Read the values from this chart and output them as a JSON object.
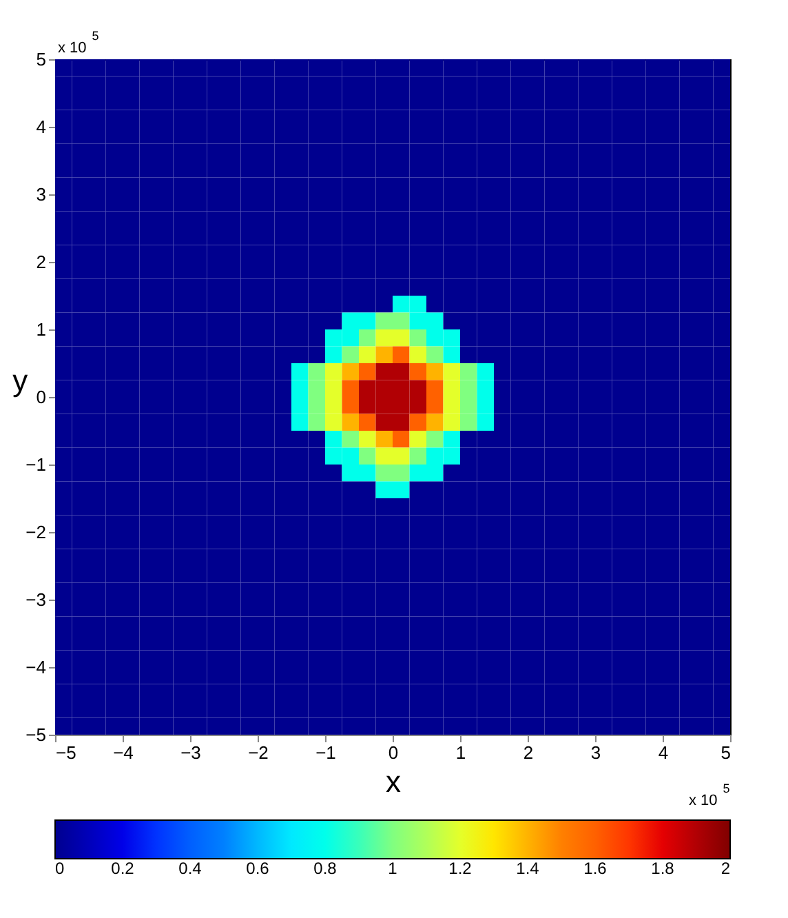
{
  "chart_data": {
    "type": "heatmap",
    "xlabel": "x",
    "ylabel": "y",
    "annotations": [
      "x 10$^{5}$",
      "x 10$^{5}$"
    ],
    "xlim": [
      -5,
      5
    ],
    "ylim": [
      -5,
      5
    ],
    "xticks": [
      -5,
      -4,
      -3,
      -2,
      -1,
      0,
      1,
      2,
      3,
      4,
      5
    ],
    "yticks": [
      -5,
      -4,
      -3,
      -2,
      -1,
      0,
      1,
      2,
      3,
      4,
      5
    ],
    "clim": [
      0,
      2
    ],
    "cticks": [
      0,
      0.2,
      0.4,
      0.6,
      0.8,
      1,
      1.2,
      1.4,
      1.6,
      1.8,
      2
    ],
    "grid": false,
    "x": [
      -4.875,
      -4.625,
      -4.375,
      -4.125,
      -3.875,
      -3.625,
      -3.375,
      -3.125,
      -2.875,
      -2.625,
      -2.375,
      -2.125,
      -1.875,
      -1.625,
      -1.375,
      -1.125,
      -0.875,
      -0.625,
      -0.375,
      -0.125,
      0.125,
      0.375,
      0.625,
      0.875,
      1.125,
      1.375,
      1.625,
      1.875,
      2.125,
      2.375,
      2.625,
      2.875,
      3.125,
      3.375,
      3.625,
      3.875,
      4.125,
      4.375,
      4.625,
      4.875
    ],
    "y": [
      4.875,
      4.625,
      4.375,
      4.125,
      3.875,
      3.625,
      3.375,
      3.125,
      2.875,
      2.625,
      2.375,
      2.125,
      1.875,
      1.625,
      1.375,
      1.125,
      0.875,
      0.625,
      0.375,
      0.125,
      -0.125,
      -0.375,
      -0.625,
      -0.875,
      -1.125,
      -1.375,
      -1.625,
      -1.875,
      -2.125,
      -2.375,
      -2.625,
      -2.875,
      -3.125,
      -3.375,
      -3.625,
      -3.875,
      -4.125,
      -4.375,
      -4.625,
      -4.875
    ],
    "cells": [
      [
        0,
        0,
        0,
        0,
        0,
        0,
        0,
        0,
        0,
        0,
        0,
        0,
        0,
        0,
        0,
        0,
        0,
        0,
        0,
        0,
        0,
        0,
        0,
        0,
        0,
        0,
        0,
        0,
        0,
        0,
        0,
        0,
        0,
        0,
        0,
        0,
        0,
        0,
        0,
        0
      ],
      [
        0,
        0,
        0,
        0,
        0,
        0,
        0,
        0,
        0,
        0,
        0,
        0,
        0,
        0,
        0,
        0,
        0,
        0,
        0,
        0,
        0,
        0,
        0,
        0,
        0,
        0,
        0,
        0,
        0,
        0,
        0,
        0,
        0,
        0,
        0,
        0,
        0,
        0,
        0,
        0
      ],
      [
        0,
        0,
        0,
        0,
        0,
        0,
        0,
        0,
        0,
        0,
        0,
        0,
        0,
        0,
        0,
        0,
        0,
        0,
        0,
        0,
        0,
        0,
        0,
        0,
        0,
        0,
        0,
        0,
        0,
        0,
        0,
        0,
        0,
        0,
        0,
        0,
        0,
        0,
        0,
        0
      ],
      [
        0,
        0,
        0,
        0,
        0,
        0,
        0,
        0,
        0,
        0,
        0,
        0,
        0,
        0,
        0,
        0,
        0,
        0,
        0,
        0,
        0,
        0,
        0,
        0,
        0,
        0,
        0,
        0,
        0,
        0,
        0,
        0,
        0,
        0,
        0,
        0,
        0,
        0,
        0,
        0
      ],
      [
        0,
        0,
        0,
        0,
        0,
        0,
        0,
        0,
        0,
        0,
        0,
        0,
        0,
        0,
        0,
        0,
        0,
        0,
        0,
        0,
        0,
        0,
        0,
        0,
        0,
        0,
        0,
        0,
        0,
        0,
        0,
        0,
        0,
        0,
        0,
        0,
        0,
        0,
        0,
        0
      ],
      [
        0,
        0,
        0,
        0,
        0,
        0,
        0,
        0,
        0,
        0,
        0,
        0,
        0,
        0,
        0,
        0,
        0,
        0,
        0,
        0,
        0,
        0,
        0,
        0,
        0,
        0,
        0,
        0,
        0,
        0,
        0,
        0,
        0,
        0,
        0,
        0,
        0,
        0,
        0,
        0
      ],
      [
        0,
        0,
        0,
        0,
        0,
        0,
        0,
        0,
        0,
        0,
        0,
        0,
        0,
        0,
        0,
        0,
        0,
        0,
        0,
        0,
        0,
        0,
        0,
        0,
        0,
        0,
        0,
        0,
        0,
        0,
        0,
        0,
        0,
        0,
        0,
        0,
        0,
        0,
        0,
        0
      ],
      [
        0,
        0,
        0,
        0,
        0,
        0,
        0,
        0,
        0,
        0,
        0,
        0,
        0,
        0,
        0,
        0,
        0,
        0,
        0,
        0,
        0,
        0,
        0,
        0,
        0,
        0,
        0,
        0,
        0,
        0,
        0,
        0,
        0,
        0,
        0,
        0,
        0,
        0,
        0,
        0
      ],
      [
        0,
        0,
        0,
        0,
        0,
        0,
        0,
        0,
        0,
        0,
        0,
        0,
        0,
        0,
        0,
        0,
        0,
        0,
        0,
        0,
        0,
        0,
        0,
        0,
        0,
        0,
        0,
        0,
        0,
        0,
        0,
        0,
        0,
        0,
        0,
        0,
        0,
        0,
        0,
        0
      ],
      [
        0,
        0,
        0,
        0,
        0,
        0,
        0,
        0,
        0,
        0,
        0,
        0,
        0,
        0,
        0,
        0,
        0,
        0,
        0,
        0,
        0,
        0,
        0,
        0,
        0,
        0,
        0,
        0,
        0,
        0,
        0,
        0,
        0,
        0,
        0,
        0,
        0,
        0,
        0,
        0
      ],
      [
        0,
        0,
        0,
        0,
        0,
        0,
        0,
        0,
        0,
        0,
        0,
        0,
        0,
        0,
        0,
        0,
        0,
        0,
        0,
        0,
        0,
        0,
        0,
        0,
        0,
        0,
        0,
        0,
        0,
        0,
        0,
        0,
        0,
        0,
        0,
        0,
        0,
        0,
        0,
        0
      ],
      [
        0,
        0,
        0,
        0,
        0,
        0,
        0,
        0,
        0,
        0,
        0,
        0,
        0,
        0,
        0,
        0,
        0,
        0,
        0,
        0,
        0,
        0,
        0,
        0,
        0,
        0,
        0,
        0,
        0,
        0,
        0,
        0,
        0,
        0,
        0,
        0,
        0,
        0,
        0,
        0
      ],
      [
        0,
        0,
        0,
        0,
        0,
        0,
        0,
        0,
        0,
        0,
        0,
        0,
        0,
        0,
        0,
        0,
        0,
        0,
        0,
        0,
        0,
        0,
        0,
        0,
        0,
        0,
        0,
        0,
        0,
        0,
        0,
        0,
        0,
        0,
        0,
        0,
        0,
        0,
        0,
        0
      ],
      [
        0,
        0,
        0,
        0,
        0,
        0,
        0,
        0,
        0,
        0,
        0,
        0,
        0,
        0,
        0,
        0,
        0,
        0,
        0,
        0,
        0,
        0,
        0,
        0,
        0,
        0,
        0,
        0,
        0,
        0,
        0,
        0,
        0,
        0,
        0,
        0,
        0,
        0,
        0,
        0
      ],
      [
        0,
        0,
        0,
        0,
        0,
        0,
        0,
        0,
        0,
        0,
        0,
        0,
        0,
        0,
        0,
        0,
        0,
        0,
        0,
        0,
        0.8,
        0.8,
        0,
        0,
        0,
        0,
        0,
        0,
        0,
        0,
        0,
        0,
        0,
        0,
        0,
        0,
        0,
        0,
        0,
        0
      ],
      [
        0,
        0,
        0,
        0,
        0,
        0,
        0,
        0,
        0,
        0,
        0,
        0,
        0,
        0,
        0,
        0,
        0,
        0.8,
        0.8,
        1.0,
        1.0,
        0.8,
        0.8,
        0,
        0,
        0,
        0,
        0,
        0,
        0,
        0,
        0,
        0,
        0,
        0,
        0,
        0,
        0,
        0,
        0
      ],
      [
        0,
        0,
        0,
        0,
        0,
        0,
        0,
        0,
        0,
        0,
        0,
        0,
        0,
        0,
        0,
        0,
        0.8,
        0.8,
        1.0,
        1.2,
        1.2,
        1.0,
        0.8,
        0.8,
        0,
        0,
        0,
        0,
        0,
        0,
        0,
        0,
        0,
        0,
        0,
        0,
        0,
        0,
        0,
        0
      ],
      [
        0,
        0,
        0,
        0,
        0,
        0,
        0,
        0,
        0,
        0,
        0,
        0,
        0,
        0,
        0,
        0,
        0.8,
        1.0,
        1.2,
        1.4,
        1.6,
        1.2,
        1.0,
        0.8,
        0,
        0,
        0,
        0,
        0,
        0,
        0,
        0,
        0,
        0,
        0,
        0,
        0,
        0,
        0,
        0
      ],
      [
        0,
        0,
        0,
        0,
        0,
        0,
        0,
        0,
        0,
        0,
        0,
        0,
        0,
        0,
        0.8,
        1.0,
        1.2,
        1.4,
        1.6,
        1.9,
        1.9,
        1.6,
        1.4,
        1.2,
        1.0,
        0.8,
        0,
        0,
        0,
        0,
        0,
        0,
        0,
        0,
        0,
        0,
        0,
        0,
        0,
        0
      ],
      [
        0,
        0,
        0,
        0,
        0,
        0,
        0,
        0,
        0,
        0,
        0,
        0,
        0,
        0,
        0.8,
        1.0,
        1.2,
        1.6,
        1.9,
        1.9,
        1.9,
        1.9,
        1.6,
        1.2,
        1.0,
        0.8,
        0,
        0,
        0,
        0,
        0,
        0,
        0,
        0,
        0,
        0,
        0,
        0,
        0,
        0
      ],
      [
        0,
        0,
        0,
        0,
        0,
        0,
        0,
        0,
        0,
        0,
        0,
        0,
        0,
        0,
        0.8,
        1.0,
        1.2,
        1.6,
        1.9,
        1.9,
        1.9,
        1.9,
        1.6,
        1.2,
        1.0,
        0.8,
        0,
        0,
        0,
        0,
        0,
        0,
        0,
        0,
        0,
        0,
        0,
        0,
        0,
        0
      ],
      [
        0,
        0,
        0,
        0,
        0,
        0,
        0,
        0,
        0,
        0,
        0,
        0,
        0,
        0,
        0.8,
        1.0,
        1.2,
        1.4,
        1.6,
        1.9,
        1.9,
        1.6,
        1.4,
        1.2,
        1.0,
        0.8,
        0,
        0,
        0,
        0,
        0,
        0,
        0,
        0,
        0,
        0,
        0,
        0,
        0,
        0
      ],
      [
        0,
        0,
        0,
        0,
        0,
        0,
        0,
        0,
        0,
        0,
        0,
        0,
        0,
        0,
        0,
        0,
        0.8,
        1.0,
        1.2,
        1.4,
        1.6,
        1.2,
        1.0,
        0.8,
        0,
        0,
        0,
        0,
        0,
        0,
        0,
        0,
        0,
        0,
        0,
        0,
        0,
        0,
        0,
        0
      ],
      [
        0,
        0,
        0,
        0,
        0,
        0,
        0,
        0,
        0,
        0,
        0,
        0,
        0,
        0,
        0,
        0,
        0.8,
        0.8,
        1.0,
        1.2,
        1.2,
        1.0,
        0.8,
        0.8,
        0,
        0,
        0,
        0,
        0,
        0,
        0,
        0,
        0,
        0,
        0,
        0,
        0,
        0,
        0,
        0
      ],
      [
        0,
        0,
        0,
        0,
        0,
        0,
        0,
        0,
        0,
        0,
        0,
        0,
        0,
        0,
        0,
        0,
        0,
        0.8,
        0.8,
        1.0,
        1.0,
        0.8,
        0.8,
        0,
        0,
        0,
        0,
        0,
        0,
        0,
        0,
        0,
        0,
        0,
        0,
        0,
        0,
        0,
        0,
        0
      ],
      [
        0,
        0,
        0,
        0,
        0,
        0,
        0,
        0,
        0,
        0,
        0,
        0,
        0,
        0,
        0,
        0,
        0,
        0,
        0,
        0.8,
        0.8,
        0,
        0,
        0,
        0,
        0,
        0,
        0,
        0,
        0,
        0,
        0,
        0,
        0,
        0,
        0,
        0,
        0,
        0,
        0
      ],
      [
        0,
        0,
        0,
        0,
        0,
        0,
        0,
        0,
        0,
        0,
        0,
        0,
        0,
        0,
        0,
        0,
        0,
        0,
        0,
        0,
        0,
        0,
        0,
        0,
        0,
        0,
        0,
        0,
        0,
        0,
        0,
        0,
        0,
        0,
        0,
        0,
        0,
        0,
        0,
        0
      ],
      [
        0,
        0,
        0,
        0,
        0,
        0,
        0,
        0,
        0,
        0,
        0,
        0,
        0,
        0,
        0,
        0,
        0,
        0,
        0,
        0,
        0,
        0,
        0,
        0,
        0,
        0,
        0,
        0,
        0,
        0,
        0,
        0,
        0,
        0,
        0,
        0,
        0,
        0,
        0,
        0
      ],
      [
        0,
        0,
        0,
        0,
        0,
        0,
        0,
        0,
        0,
        0,
        0,
        0,
        0,
        0,
        0,
        0,
        0,
        0,
        0,
        0,
        0,
        0,
        0,
        0,
        0,
        0,
        0,
        0,
        0,
        0,
        0,
        0,
        0,
        0,
        0,
        0,
        0,
        0,
        0,
        0
      ],
      [
        0,
        0,
        0,
        0,
        0,
        0,
        0,
        0,
        0,
        0,
        0,
        0,
        0,
        0,
        0,
        0,
        0,
        0,
        0,
        0,
        0,
        0,
        0,
        0,
        0,
        0,
        0,
        0,
        0,
        0,
        0,
        0,
        0,
        0,
        0,
        0,
        0,
        0,
        0,
        0
      ],
      [
        0,
        0,
        0,
        0,
        0,
        0,
        0,
        0,
        0,
        0,
        0,
        0,
        0,
        0,
        0,
        0,
        0,
        0,
        0,
        0,
        0,
        0,
        0,
        0,
        0,
        0,
        0,
        0,
        0,
        0,
        0,
        0,
        0,
        0,
        0,
        0,
        0,
        0,
        0,
        0
      ],
      [
        0,
        0,
        0,
        0,
        0,
        0,
        0,
        0,
        0,
        0,
        0,
        0,
        0,
        0,
        0,
        0,
        0,
        0,
        0,
        0,
        0,
        0,
        0,
        0,
        0,
        0,
        0,
        0,
        0,
        0,
        0,
        0,
        0,
        0,
        0,
        0,
        0,
        0,
        0,
        0
      ],
      [
        0,
        0,
        0,
        0,
        0,
        0,
        0,
        0,
        0,
        0,
        0,
        0,
        0,
        0,
        0,
        0,
        0,
        0,
        0,
        0,
        0,
        0,
        0,
        0,
        0,
        0,
        0,
        0,
        0,
        0,
        0,
        0,
        0,
        0,
        0,
        0,
        0,
        0,
        0,
        0
      ],
      [
        0,
        0,
        0,
        0,
        0,
        0,
        0,
        0,
        0,
        0,
        0,
        0,
        0,
        0,
        0,
        0,
        0,
        0,
        0,
        0,
        0,
        0,
        0,
        0,
        0,
        0,
        0,
        0,
        0,
        0,
        0,
        0,
        0,
        0,
        0,
        0,
        0,
        0,
        0,
        0
      ],
      [
        0,
        0,
        0,
        0,
        0,
        0,
        0,
        0,
        0,
        0,
        0,
        0,
        0,
        0,
        0,
        0,
        0,
        0,
        0,
        0,
        0,
        0,
        0,
        0,
        0,
        0,
        0,
        0,
        0,
        0,
        0,
        0,
        0,
        0,
        0,
        0,
        0,
        0,
        0,
        0
      ],
      [
        0,
        0,
        0,
        0,
        0,
        0,
        0,
        0,
        0,
        0,
        0,
        0,
        0,
        0,
        0,
        0,
        0,
        0,
        0,
        0,
        0,
        0,
        0,
        0,
        0,
        0,
        0,
        0,
        0,
        0,
        0,
        0,
        0,
        0,
        0,
        0,
        0,
        0,
        0,
        0
      ],
      [
        0,
        0,
        0,
        0,
        0,
        0,
        0,
        0,
        0,
        0,
        0,
        0,
        0,
        0,
        0,
        0,
        0,
        0,
        0,
        0,
        0,
        0,
        0,
        0,
        0,
        0,
        0,
        0,
        0,
        0,
        0,
        0,
        0,
        0,
        0,
        0,
        0,
        0,
        0,
        0
      ],
      [
        0,
        0,
        0,
        0,
        0,
        0,
        0,
        0,
        0,
        0,
        0,
        0,
        0,
        0,
        0,
        0,
        0,
        0,
        0,
        0,
        0,
        0,
        0,
        0,
        0,
        0,
        0,
        0,
        0,
        0,
        0,
        0,
        0,
        0,
        0,
        0,
        0,
        0,
        0,
        0
      ],
      [
        0,
        0,
        0,
        0,
        0,
        0,
        0,
        0,
        0,
        0,
        0,
        0,
        0,
        0,
        0,
        0,
        0,
        0,
        0,
        0,
        0,
        0,
        0,
        0,
        0,
        0,
        0,
        0,
        0,
        0,
        0,
        0,
        0,
        0,
        0,
        0,
        0,
        0,
        0,
        0
      ],
      [
        0,
        0,
        0,
        0,
        0,
        0,
        0,
        0,
        0,
        0,
        0,
        0,
        0,
        0,
        0,
        0,
        0,
        0,
        0,
        0,
        0,
        0,
        0,
        0,
        0,
        0,
        0,
        0,
        0,
        0,
        0,
        0,
        0,
        0,
        0,
        0,
        0,
        0,
        0,
        0
      ]
    ]
  }
}
